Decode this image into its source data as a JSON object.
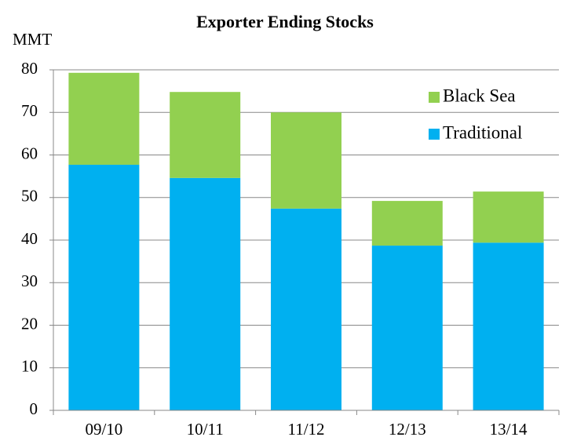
{
  "chart_data": {
    "type": "stacked_bar",
    "title": "Exporter Ending Stocks",
    "y_label": "MMT",
    "categories": [
      "09/10",
      "10/11",
      "11/12",
      "12/13",
      "13/14"
    ],
    "series": [
      {
        "name": "Traditional",
        "color": "#00b0f0",
        "values": [
          57.7,
          54.6,
          47.4,
          38.7,
          39.4
        ]
      },
      {
        "name": "Black Sea",
        "color": "#92d050",
        "values": [
          21.6,
          20.2,
          22.6,
          10.5,
          12.0
        ]
      }
    ],
    "ylim": [
      0,
      80
    ],
    "yticks": [
      0,
      10,
      20,
      30,
      40,
      50,
      60,
      70,
      80
    ],
    "grid": true,
    "legend": "upper right"
  }
}
